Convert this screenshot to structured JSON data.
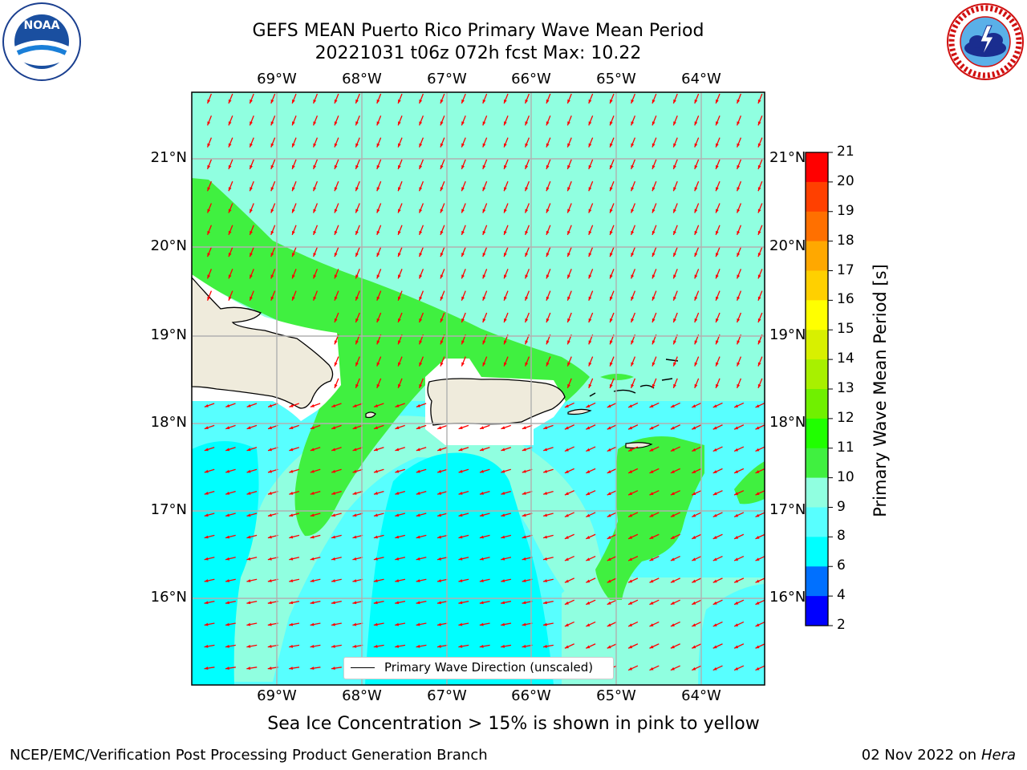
{
  "title_line1": "GEFS MEAN Puerto Rico Primary Wave Mean Period",
  "title_line2": "20221031 t06z 072h fcst   Max: 10.22",
  "lon_labels": [
    "69°W",
    "68°W",
    "67°W",
    "66°W",
    "65°W",
    "64°W"
  ],
  "lat_labels": [
    "21°N",
    "20°N",
    "19°N",
    "18°N",
    "17°N",
    "16°N"
  ],
  "colorbar": {
    "title": "Primary Wave Mean Period [s]",
    "ticks": [
      "2",
      "4",
      "6",
      "8",
      "9",
      "10",
      "11",
      "12",
      "13",
      "14",
      "15",
      "16",
      "17",
      "18",
      "19",
      "20",
      "21"
    ],
    "colors": [
      "#0000ff",
      "#0070ff",
      "#00ffff",
      "#58ffff",
      "#90ffe0",
      "#40f040",
      "#20ff00",
      "#70f000",
      "#a8f000",
      "#d8f000",
      "#ffff00",
      "#ffd000",
      "#ffa800",
      "#ff7000",
      "#ff4000",
      "#ff0000"
    ]
  },
  "legend_label": "Primary Wave Direction (unscaled)",
  "ice_note": "Sea Ice Concentration > 15% is shown in pink to yellow",
  "footer_left": "NCEP/EMC/Verification Post Processing Product Generation Branch",
  "footer_date": "02 Nov 2022 on",
  "footer_host": "Hera",
  "arrow_color": "#ff0000",
  "land_color": "#efebdc",
  "logo_noaa_text": "NOAA"
}
